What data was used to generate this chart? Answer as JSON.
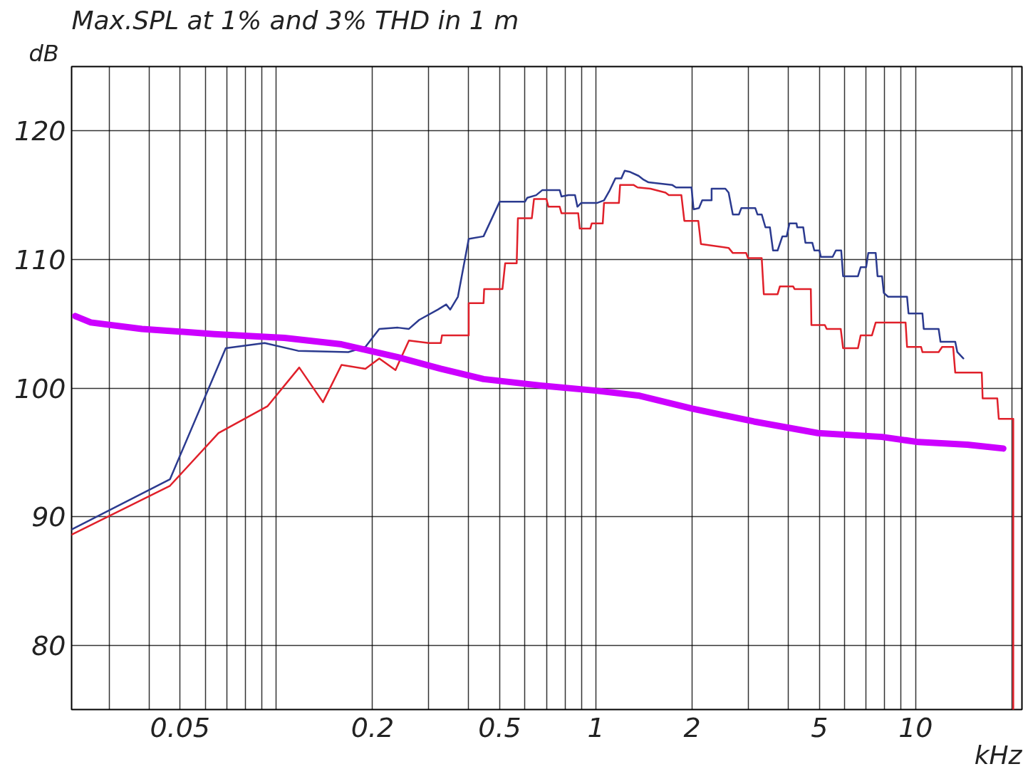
{
  "chart_data": {
    "type": "line",
    "title": "Max.SPL at 1% and 3% THD in 1 m",
    "xlabel": "kHz",
    "ylabel": "dB",
    "log": "x",
    "grid": true,
    "line_style": "solid",
    "xlim": [
      0.0229,
      21.5
    ],
    "ylim": [
      75,
      125
    ],
    "xticks": [
      {
        "value": 0.03,
        "label": null
      },
      {
        "value": 0.04,
        "label": null
      },
      0.05,
      {
        "value": 0.06,
        "label": null
      },
      {
        "value": 0.07,
        "label": null
      },
      {
        "value": 0.08,
        "label": null
      },
      {
        "value": 0.09,
        "label": null
      },
      {
        "value": 0.1,
        "label": null
      },
      0.2,
      {
        "value": 0.3,
        "label": null
      },
      {
        "value": 0.4,
        "label": null
      },
      0.5,
      {
        "value": 0.6,
        "label": null
      },
      {
        "value": 0.7,
        "label": null
      },
      {
        "value": 0.8,
        "label": null
      },
      {
        "value": 0.9,
        "label": null
      },
      1,
      2,
      {
        "value": 3,
        "label": null
      },
      {
        "value": 4,
        "label": null
      },
      5,
      {
        "value": 6,
        "label": null
      },
      {
        "value": 7,
        "label": null
      },
      {
        "value": 8,
        "label": null
      },
      {
        "value": 9,
        "label": null
      },
      10,
      {
        "value": 20,
        "label": null
      }
    ],
    "yticks": [
      80,
      90,
      100,
      110,
      120
    ],
    "series": [
      {
        "color": "#2b3a8f",
        "x": [
          0.0229,
          0.0465,
          0.0695,
          0.092,
          0.117,
          0.168,
          0.19,
          0.21,
          0.24,
          0.26,
          0.28,
          0.32,
          0.34,
          0.35,
          0.37,
          0.4,
          0.445,
          0.5,
          0.6,
          0.61,
          0.65,
          0.68,
          0.77,
          0.78,
          0.82,
          0.86,
          0.875,
          0.9,
          1.01,
          1.06,
          1.1,
          1.15,
          1.2,
          1.23,
          1.28,
          1.36,
          1.41,
          1.46,
          1.73,
          1.78,
          1.99,
          2.02,
          2.1,
          2.15,
          2.3,
          2.3,
          2.54,
          2.6,
          2.68,
          2.8,
          2.85,
          3.15,
          3.2,
          3.3,
          3.39,
          3.5,
          3.58,
          3.7,
          3.83,
          3.95,
          4.03,
          4.24,
          4.26,
          4.45,
          4.52,
          4.75,
          4.82,
          5.0,
          5.05,
          5.5,
          5.63,
          5.85,
          5.93,
          6.6,
          6.73,
          7.0,
          7.11,
          7.5,
          7.6,
          7.85,
          7.95,
          8.2,
          9.4,
          9.5,
          10.5,
          10.6,
          11.8,
          11.96,
          13.3,
          13.5,
          14.1
        ],
        "values": [
          89.0,
          92.9,
          103.1,
          103.5,
          102.9,
          102.8,
          103.2,
          104.6,
          104.7,
          104.6,
          105.3,
          106.1,
          106.5,
          106.1,
          107.1,
          111.6,
          111.8,
          114.5,
          114.5,
          114.8,
          115.0,
          115.4,
          115.4,
          114.9,
          115.0,
          115.0,
          114.1,
          114.4,
          114.4,
          114.6,
          115.3,
          116.3,
          116.3,
          116.9,
          116.8,
          116.5,
          116.2,
          116.0,
          115.8,
          115.6,
          115.6,
          113.9,
          114.0,
          114.6,
          114.6,
          115.5,
          115.5,
          115.2,
          113.5,
          113.5,
          114.0,
          114.0,
          113.5,
          113.5,
          112.5,
          112.5,
          110.7,
          110.7,
          111.8,
          111.8,
          112.8,
          112.8,
          112.5,
          112.5,
          111.3,
          111.3,
          110.7,
          110.7,
          110.2,
          110.2,
          110.7,
          110.7,
          108.7,
          108.7,
          109.4,
          109.4,
          110.5,
          110.5,
          108.7,
          108.7,
          107.4,
          107.1,
          107.1,
          105.8,
          105.8,
          104.6,
          104.6,
          103.6,
          103.6,
          102.8,
          102.3
        ]
      },
      {
        "color": "#e0202a",
        "x": [
          0.0229,
          0.0465,
          0.066,
          0.094,
          0.118,
          0.14,
          0.16,
          0.19,
          0.21,
          0.236,
          0.26,
          0.3,
          0.327,
          0.33,
          0.4,
          0.4,
          0.445,
          0.447,
          0.51,
          0.52,
          0.565,
          0.57,
          0.63,
          0.64,
          0.7,
          0.71,
          0.77,
          0.78,
          0.88,
          0.89,
          0.96,
          0.97,
          1.05,
          1.06,
          1.18,
          1.19,
          1.31,
          1.35,
          1.48,
          1.65,
          1.69,
          1.85,
          1.89,
          2.09,
          2.13,
          2.6,
          2.68,
          2.95,
          2.99,
          3.3,
          3.35,
          3.7,
          3.76,
          4.14,
          4.18,
          4.7,
          4.72,
          5.2,
          5.27,
          5.83,
          5.93,
          6.6,
          6.73,
          7.3,
          7.5,
          9.3,
          9.4,
          10.4,
          10.5,
          11.8,
          12.1,
          13.1,
          13.3,
          16.1,
          16.2,
          18.0,
          18.2,
          20.2,
          20.2
        ],
        "values": [
          88.6,
          92.4,
          96.5,
          98.6,
          101.6,
          98.9,
          101.8,
          101.5,
          102.3,
          101.4,
          103.7,
          103.5,
          103.5,
          104.1,
          104.1,
          106.6,
          106.6,
          107.7,
          107.7,
          109.7,
          109.7,
          113.2,
          113.2,
          114.7,
          114.7,
          114.1,
          114.1,
          113.6,
          113.6,
          112.4,
          112.4,
          112.8,
          112.8,
          114.4,
          114.4,
          115.8,
          115.8,
          115.6,
          115.5,
          115.2,
          115.0,
          115.0,
          113.0,
          113.0,
          111.2,
          110.9,
          110.5,
          110.5,
          110.1,
          110.1,
          107.3,
          107.3,
          107.9,
          107.9,
          107.7,
          107.7,
          104.9,
          104.9,
          104.6,
          104.6,
          103.1,
          103.1,
          104.1,
          104.1,
          105.1,
          105.1,
          103.2,
          103.2,
          102.8,
          102.8,
          103.2,
          103.2,
          101.2,
          101.2,
          99.2,
          99.2,
          97.6,
          97.6,
          75
        ]
      },
      {
        "color": "#cc00ff",
        "x": [
          0.0235,
          0.0263,
          0.038,
          0.064,
          0.106,
          0.16,
          0.24,
          0.327,
          0.445,
          0.67,
          1.0,
          1.37,
          2.0,
          3.12,
          4.95,
          7.85,
          10.2,
          14.5,
          18.8
        ],
        "values": [
          105.6,
          105.1,
          104.6,
          104.2,
          103.9,
          103.4,
          102.4,
          101.5,
          100.7,
          100.2,
          99.8,
          99.4,
          98.4,
          97.4,
          96.5,
          96.2,
          95.8,
          95.6,
          95.3
        ]
      }
    ]
  }
}
